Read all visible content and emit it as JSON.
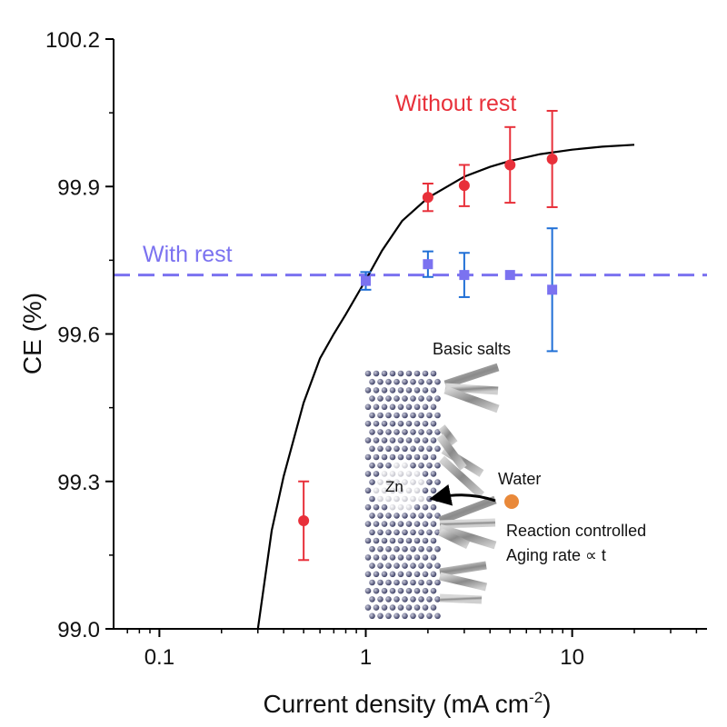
{
  "chart_data": {
    "type": "scatter",
    "xlabel_main": "Current density (mA cm",
    "xlabel_sup": "-2",
    "xlabel_close": ")",
    "ylabel": "CE (%)",
    "x_scale": "log",
    "xlim": [
      0.06,
      45
    ],
    "ylim": [
      99.0,
      100.2
    ],
    "x_ticks": [
      0.1,
      1,
      10
    ],
    "x_tick_labels": [
      "0.1",
      "1",
      "10"
    ],
    "y_ticks": [
      99.0,
      99.3,
      99.6,
      99.9,
      100.2
    ],
    "y_tick_labels": [
      "99.0",
      "99.3",
      "99.6",
      "99.9",
      "100.2"
    ],
    "y_minor_ticks": [
      99.15,
      99.45,
      99.75,
      100.05
    ],
    "grid": false,
    "series": [
      {
        "name": "Without rest",
        "color": "#e8303a",
        "marker": "circle",
        "points": [
          {
            "x": 0.5,
            "y": 99.22,
            "err": 0.08
          },
          {
            "x": 2,
            "y": 99.878,
            "err": 0.028
          },
          {
            "x": 3,
            "y": 99.902,
            "err": 0.042
          },
          {
            "x": 5,
            "y": 99.944,
            "err": 0.077
          },
          {
            "x": 8,
            "y": 99.956,
            "err": 0.098
          }
        ]
      },
      {
        "name": "With rest",
        "color": "#7b72f0",
        "error_color": "#1f6fd6",
        "marker": "square",
        "reference_line": 99.72,
        "points": [
          {
            "x": 1,
            "y": 99.708,
            "err": 0.018
          },
          {
            "x": 2,
            "y": 99.742,
            "err": 0.026
          },
          {
            "x": 3,
            "y": 99.72,
            "err": 0.045
          },
          {
            "x": 5,
            "y": 99.72,
            "err": 0.0
          },
          {
            "x": 8,
            "y": 99.69,
            "err": 0.125
          }
        ]
      },
      {
        "name": "fit",
        "color": "#000000",
        "type": "line",
        "points": [
          {
            "x": 0.3,
            "y": 99.0
          },
          {
            "x": 0.35,
            "y": 99.2
          },
          {
            "x": 0.4,
            "y": 99.31
          },
          {
            "x": 0.5,
            "y": 99.46
          },
          {
            "x": 0.6,
            "y": 99.55
          },
          {
            "x": 0.7,
            "y": 99.6
          },
          {
            "x": 0.8,
            "y": 99.64
          },
          {
            "x": 1.0,
            "y": 99.71
          },
          {
            "x": 1.2,
            "y": 99.77
          },
          {
            "x": 1.5,
            "y": 99.83
          },
          {
            "x": 2.0,
            "y": 99.877
          },
          {
            "x": 3.0,
            "y": 99.92
          },
          {
            "x": 4.0,
            "y": 99.94
          },
          {
            "x": 5.0,
            "y": 99.952
          },
          {
            "x": 7.0,
            "y": 99.966
          },
          {
            "x": 10.0,
            "y": 99.975
          },
          {
            "x": 14.0,
            "y": 99.981
          },
          {
            "x": 20.0,
            "y": 99.985
          }
        ]
      }
    ],
    "annotations": {
      "without_rest": "Without rest",
      "with_rest": "With rest",
      "basic_salts": "Basic salts",
      "zn": "Zn",
      "water": "Water",
      "reaction_controlled": "Reaction controlled",
      "aging_rate": "Aging rate ∝  t"
    },
    "inset_colors": {
      "atom": "#4a4d73",
      "salt": "#9a9a9a",
      "water_ball": "#e9893a"
    }
  }
}
